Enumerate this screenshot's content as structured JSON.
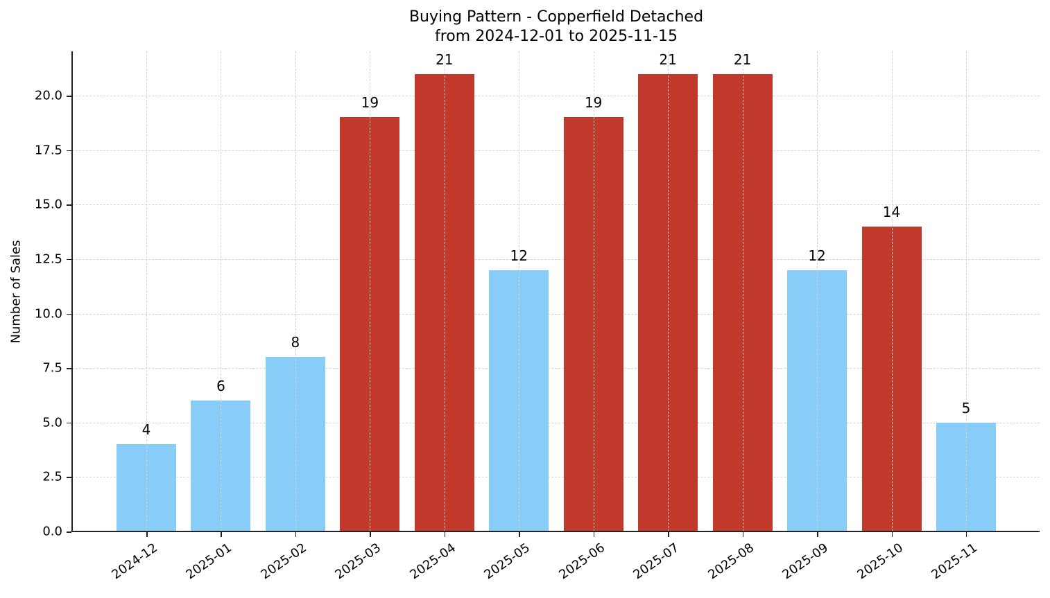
{
  "chart_data": {
    "type": "bar",
    "title": "Buying Pattern - Copperfield Detached",
    "subtitle": "from 2024-12-01 to 2025-11-15",
    "xlabel": "",
    "ylabel": "Number of Sales",
    "categories": [
      "2024-12",
      "2025-01",
      "2025-02",
      "2025-03",
      "2025-04",
      "2025-05",
      "2025-06",
      "2025-07",
      "2025-08",
      "2025-09",
      "2025-10",
      "2025-11"
    ],
    "values": [
      4,
      6,
      8,
      19,
      21,
      12,
      19,
      21,
      21,
      12,
      14,
      5
    ],
    "bar_colors": [
      "#87cdf7",
      "#87cdf7",
      "#87cdf7",
      "#c0392b",
      "#c0392b",
      "#87cdf7",
      "#c0392b",
      "#c0392b",
      "#c0392b",
      "#87cdf7",
      "#c0392b",
      "#87cdf7"
    ],
    "ylim": [
      0,
      22.05
    ],
    "yticks": [
      "0.0",
      "2.5",
      "5.0",
      "7.5",
      "10.0",
      "12.5",
      "15.0",
      "17.5",
      "20.0"
    ],
    "grid": true,
    "legend": null
  }
}
